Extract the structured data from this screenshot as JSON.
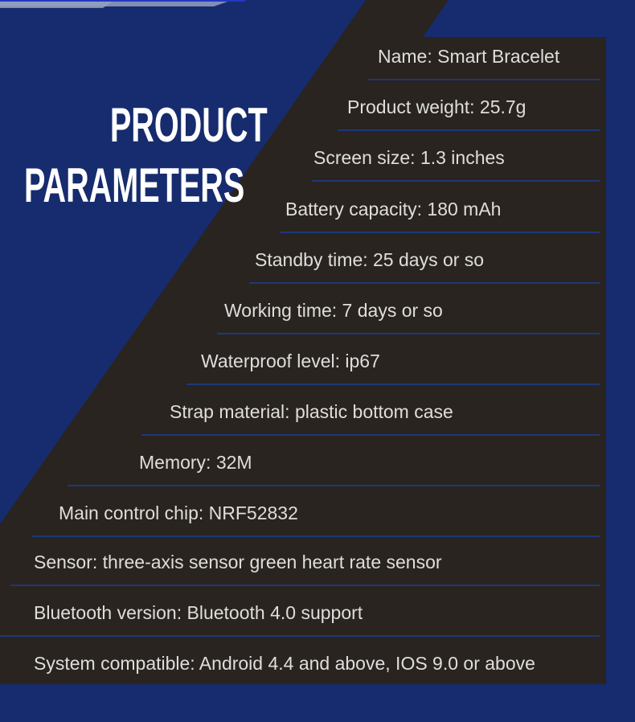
{
  "title": {
    "line1": "PRODUCT",
    "line2": "PARAMETERS"
  },
  "rows": [
    {
      "text": "Name: Smart Bracelet"
    },
    {
      "text": "Product weight: 25.7g"
    },
    {
      "text": "Screen size: 1.3 inches"
    },
    {
      "text": "Battery capacity: 180 mAh"
    },
    {
      "text": "Standby time: 25 days or so"
    },
    {
      "text": "Working time: 7 days or so"
    },
    {
      "text": "Waterproof level: ip67"
    },
    {
      "text": "Strap material: plastic bottom case"
    },
    {
      "text": "Memory: 32M"
    },
    {
      "text": "Main control chip: NRF52832"
    },
    {
      "text": "Sensor: three-axis sensor green heart rate sensor"
    },
    {
      "text": "Bluetooth version: Bluetooth 4.0 support"
    },
    {
      "text": "System compatible: Android 4.4 and above, IOS 9.0 or above"
    }
  ],
  "colors": {
    "background_blue": "#162c6e",
    "panel_dark": "#292420",
    "row_underline": "#1e3878",
    "row_text": "#dfdedc",
    "title_text": "#ffffff",
    "decor_stripe": "#95a0c0",
    "decor_accent_line": "#2438c4"
  }
}
